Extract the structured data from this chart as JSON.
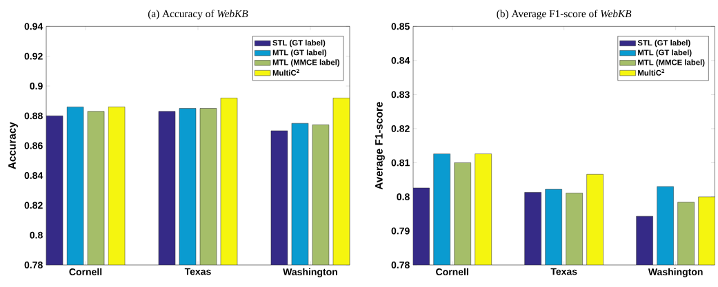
{
  "chart_data": [
    {
      "type": "bar",
      "title": "(a) Accuracy of *WebKB*",
      "ylabel": "Accuracy",
      "categories": [
        "Cornell",
        "Texas",
        "Washington"
      ],
      "series": [
        {
          "name": "STL (GT label)",
          "color": "#352a87",
          "values": [
            0.88,
            0.883,
            0.87
          ]
        },
        {
          "name": "MTL (GT label)",
          "color": "#0a9bd0",
          "values": [
            0.886,
            0.885,
            0.875
          ]
        },
        {
          "name": "MTL (MMCE label)",
          "color": "#a5be69",
          "values": [
            0.883,
            0.885,
            0.874
          ]
        },
        {
          "name": "MultiC$^{2}$",
          "color": "#f5f50f",
          "values": [
            0.886,
            0.892,
            0.892
          ]
        }
      ],
      "ylim": [
        0.78,
        0.94
      ],
      "yticks": [
        0.78,
        0.8,
        0.82,
        0.84,
        0.86,
        0.88,
        0.9,
        0.92,
        0.94
      ],
      "legend": "top right"
    },
    {
      "type": "bar",
      "title": "(b) Average F1-score of *WebKB*",
      "ylabel": "Average F1-score",
      "categories": [
        "Cornell",
        "Texas",
        "Washington"
      ],
      "series": [
        {
          "name": "STL (GT label)",
          "color": "#352a87",
          "values": [
            0.8026,
            0.8013,
            0.7943
          ]
        },
        {
          "name": "MTL (GT label)",
          "color": "#0a9bd0",
          "values": [
            0.8126,
            0.8022,
            0.803
          ]
        },
        {
          "name": "MTL (MMCE label)",
          "color": "#a5be69",
          "values": [
            0.81,
            0.8011,
            0.7984
          ]
        },
        {
          "name": "MultiC$^{2}$",
          "color": "#f5f50f",
          "values": [
            0.8126,
            0.8066,
            0.8
          ]
        }
      ],
      "ylim": [
        0.78,
        0.85
      ],
      "yticks": [
        0.78,
        0.79,
        0.8,
        0.81,
        0.82,
        0.83,
        0.84,
        0.85
      ],
      "legend": "top right"
    }
  ]
}
